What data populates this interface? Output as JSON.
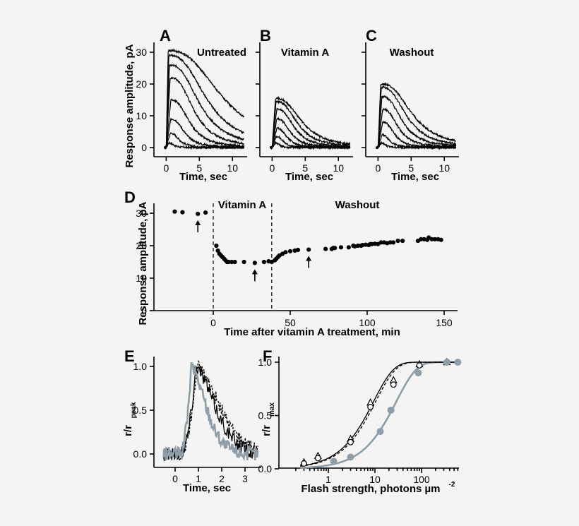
{
  "chart_data": [
    {
      "panel": "A",
      "type": "line",
      "title": "Untreated",
      "xlabel": "Time, sec",
      "ylabel": "Response amplitude, pA",
      "xlim": [
        -1,
        12
      ],
      "ylim": [
        -2,
        32
      ],
      "xticks": [
        "0",
        "5",
        "10"
      ],
      "yticks": [
        "0",
        "10",
        "20",
        "30"
      ],
      "traces": [
        {
          "peak": 1.5,
          "tpeak": 0.4,
          "dur": 0.8
        },
        {
          "peak": 4.5,
          "tpeak": 0.6,
          "dur": 1.5
        },
        {
          "peak": 9,
          "tpeak": 0.7,
          "dur": 2.2
        },
        {
          "peak": 15,
          "tpeak": 0.7,
          "dur": 3.0
        },
        {
          "peak": 22,
          "tpeak": 0.6,
          "dur": 3.8
        },
        {
          "peak": 26,
          "tpeak": 0.5,
          "dur": 4.8
        },
        {
          "peak": 29,
          "tpeak": 0.4,
          "dur": 6.0
        },
        {
          "peak": 30.5,
          "tpeak": 0.3,
          "dur": 8.5
        }
      ]
    },
    {
      "panel": "B",
      "type": "line",
      "title": "Vitamin A",
      "xlabel": "Time, sec",
      "xlim": [
        -1,
        12
      ],
      "ylim": [
        -2,
        32
      ],
      "xticks": [
        "0",
        "5",
        "10"
      ],
      "traces": [
        {
          "peak": 1.5,
          "tpeak": 0.5,
          "dur": 0.7
        },
        {
          "peak": 3.5,
          "tpeak": 0.6,
          "dur": 1.2
        },
        {
          "peak": 6,
          "tpeak": 0.7,
          "dur": 1.7
        },
        {
          "peak": 9,
          "tpeak": 0.7,
          "dur": 2.2
        },
        {
          "peak": 12,
          "tpeak": 0.7,
          "dur": 2.8
        },
        {
          "peak": 14.5,
          "tpeak": 0.6,
          "dur": 3.4
        },
        {
          "peak": 15.5,
          "tpeak": 0.5,
          "dur": 4.2
        }
      ]
    },
    {
      "panel": "C",
      "type": "line",
      "title": "Washout",
      "xlabel": "Time, sec",
      "xlim": [
        -1,
        12
      ],
      "ylim": [
        -2,
        32
      ],
      "xticks": [
        "0",
        "5",
        "10"
      ],
      "traces": [
        {
          "peak": 1.5,
          "tpeak": 0.5,
          "dur": 0.7
        },
        {
          "peak": 4,
          "tpeak": 0.6,
          "dur": 1.3
        },
        {
          "peak": 8,
          "tpeak": 0.7,
          "dur": 1.9
        },
        {
          "peak": 12,
          "tpeak": 0.7,
          "dur": 2.5
        },
        {
          "peak": 16,
          "tpeak": 0.6,
          "dur": 3.2
        },
        {
          "peak": 19,
          "tpeak": 0.5,
          "dur": 4.0
        },
        {
          "peak": 20,
          "tpeak": 0.4,
          "dur": 5.0
        }
      ]
    },
    {
      "panel": "D",
      "type": "scatter",
      "xlabel": "Time after vitamin A treatment, min",
      "ylabel": "Response amplitude, pA",
      "xlim": [
        -30,
        155
      ],
      "ylim": [
        0,
        35
      ],
      "xticks": [
        "0",
        "50",
        "100",
        "150"
      ],
      "yticks": [
        "0",
        "10",
        "20",
        "30"
      ],
      "annotations": [
        "Vitamin A",
        "Washout"
      ],
      "dashed_lines_x": [
        0,
        38
      ],
      "arrows_x": [
        -10,
        27,
        62
      ],
      "points": [
        [
          -25,
          30.5
        ],
        [
          -20,
          30.3
        ],
        [
          -10,
          29.8
        ],
        [
          -5,
          30.2
        ],
        [
          2,
          20
        ],
        [
          3,
          18.5
        ],
        [
          4,
          17.5
        ],
        [
          5,
          17
        ],
        [
          6,
          16.5
        ],
        [
          7,
          16
        ],
        [
          8,
          15.5
        ],
        [
          9,
          15
        ],
        [
          10,
          15
        ],
        [
          12,
          15
        ],
        [
          14,
          15
        ],
        [
          20,
          15
        ],
        [
          27,
          14.7
        ],
        [
          33,
          15
        ],
        [
          36,
          15.2
        ],
        [
          38,
          15
        ],
        [
          40,
          15.5
        ],
        [
          41,
          16
        ],
        [
          42,
          16.5
        ],
        [
          43,
          17
        ],
        [
          45,
          17.5
        ],
        [
          47,
          18
        ],
        [
          50,
          18.3
        ],
        [
          53,
          18.5
        ],
        [
          55,
          18.7
        ],
        [
          62,
          18.8
        ],
        [
          73,
          19
        ],
        [
          77,
          19
        ],
        [
          78,
          19.3
        ],
        [
          79,
          19.3
        ],
        [
          83,
          19.5
        ],
        [
          88,
          19.5
        ],
        [
          91,
          20
        ],
        [
          92,
          19.8
        ],
        [
          94,
          20
        ],
        [
          96,
          20
        ],
        [
          97,
          20.2
        ],
        [
          99,
          20.3
        ],
        [
          101,
          20.2
        ],
        [
          102,
          20.5
        ],
        [
          103,
          20.5
        ],
        [
          105,
          20.6
        ],
        [
          107,
          20.5
        ],
        [
          109,
          21
        ],
        [
          111,
          21
        ],
        [
          113,
          20.8
        ],
        [
          115,
          21
        ],
        [
          117,
          21
        ],
        [
          120,
          21.5
        ],
        [
          123,
          21.5
        ],
        [
          133,
          21.5
        ],
        [
          135,
          22
        ],
        [
          137,
          22
        ],
        [
          139,
          21.8
        ],
        [
          140,
          22.5
        ],
        [
          142,
          22
        ],
        [
          144,
          22
        ],
        [
          146,
          22
        ],
        [
          148,
          21.8
        ]
      ]
    },
    {
      "panel": "E",
      "type": "line",
      "xlabel": "Time, sec",
      "ylabel": "r/r",
      "ylabel_sub": "peak",
      "xlim": [
        -0.6,
        3.7
      ],
      "ylim": [
        -0.18,
        1.1
      ],
      "xticks": [
        "0",
        "1",
        "2",
        "3"
      ],
      "yticks": [
        "0.0",
        "0.5",
        "1.0"
      ],
      "series": [
        {
          "style": "dashed",
          "color": "#000000",
          "tpeak": 0.95,
          "decay": 1.9
        },
        {
          "style": "solid",
          "color": "#000000",
          "tpeak": 0.9,
          "decay": 1.6
        },
        {
          "style": "solid",
          "color": "#8f9ea6",
          "tpeak": 0.7,
          "decay": 1.25
        }
      ]
    },
    {
      "panel": "F",
      "type": "scatter",
      "xlabel": "Flash strength, photons µm",
      "xlabel_sup": "-2",
      "ylabel": "r/r",
      "ylabel_sub": "max",
      "xscale": "log",
      "xlim": [
        0.2,
        700
      ],
      "ylim": [
        0,
        1.05
      ],
      "xticks": [
        "1",
        "10",
        "100"
      ],
      "yticks": [
        "0.0",
        "0.5",
        "1.0"
      ],
      "series": [
        {
          "marker": "triangle-open",
          "color": "#000000",
          "points": [
            [
              0.3,
              0.06
            ],
            [
              0.6,
              0.12
            ],
            [
              3,
              0.28
            ],
            [
              8,
              0.62
            ],
            [
              25,
              0.83
            ],
            [
              90,
              0.98
            ],
            [
              350,
              1.0
            ]
          ],
          "fit_half": 6.5,
          "line": "solid"
        },
        {
          "marker": "circle-open",
          "color": "#000000",
          "points": [
            [
              0.3,
              0.05
            ],
            [
              0.6,
              0.1
            ],
            [
              3,
              0.25
            ],
            [
              8,
              0.58
            ],
            [
              25,
              0.79
            ],
            [
              90,
              0.97
            ],
            [
              350,
              1.0
            ]
          ],
          "fit_half": 7.2,
          "line": "dashed"
        },
        {
          "marker": "circle-filled",
          "color": "#8f9ea6",
          "points": [
            [
              1.3,
              0.07
            ],
            [
              3,
              0.11
            ],
            [
              13,
              0.35
            ],
            [
              22,
              0.55
            ],
            [
              85,
              0.9
            ],
            [
              350,
              1.0
            ],
            [
              600,
              1.0
            ]
          ],
          "fit_half": 20,
          "line": "solid"
        }
      ]
    }
  ]
}
